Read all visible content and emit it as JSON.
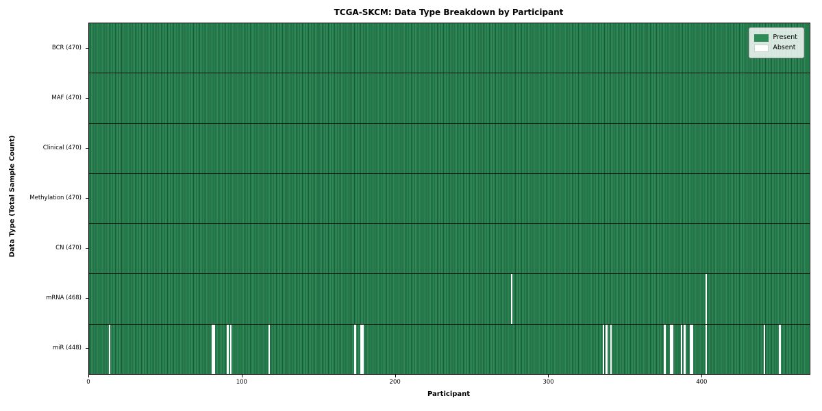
{
  "figure": {
    "title": "TCGA-SKCM: Data Type Breakdown by Participant",
    "xlabel": "Participant",
    "ylabel": "Data Type (Total Sample Count)"
  },
  "legend": {
    "present_label": "Present",
    "absent_label": "Absent"
  },
  "colors": {
    "present": "#2e8b57",
    "absent": "#ffffff",
    "cell_edge": "#1b5232",
    "row_separator": "#000000",
    "legend_background": "rgba(255,255,255,0.82)"
  },
  "chart_data": {
    "type": "heatmap",
    "title": "TCGA-SKCM: Data Type Breakdown by Participant",
    "xlabel": "Participant",
    "ylabel": "Data Type (Total Sample Count)",
    "legend_entries": [
      {
        "label": "Present",
        "color": "#2e8b57"
      },
      {
        "label": "Absent",
        "color": "#ffffff"
      }
    ],
    "legend_position": "upper right",
    "n_participants": 470,
    "x_range": [
      0,
      470
    ],
    "x_ticks": [
      0,
      100,
      200,
      300,
      400
    ],
    "rows": [
      {
        "label": "BCR (470)",
        "present_count": 470,
        "absent_participants": []
      },
      {
        "label": "MAF (470)",
        "present_count": 470,
        "absent_participants": []
      },
      {
        "label": "Clinical (470)",
        "present_count": 470,
        "absent_participants": []
      },
      {
        "label": "Methylation (470)",
        "present_count": 470,
        "absent_participants": []
      },
      {
        "label": "CN (470)",
        "present_count": 470,
        "absent_participants": []
      },
      {
        "label": "mRNA (468)",
        "present_count": 468,
        "absent_participants": [
          275,
          402
        ]
      },
      {
        "label": "miR (448)",
        "present_count": 448,
        "absent_participants": [
          13,
          80,
          81,
          90,
          92,
          117,
          173,
          177,
          178,
          335,
          337,
          340,
          375,
          379,
          380,
          386,
          388,
          392,
          393,
          402,
          440,
          450
        ]
      }
    ]
  }
}
